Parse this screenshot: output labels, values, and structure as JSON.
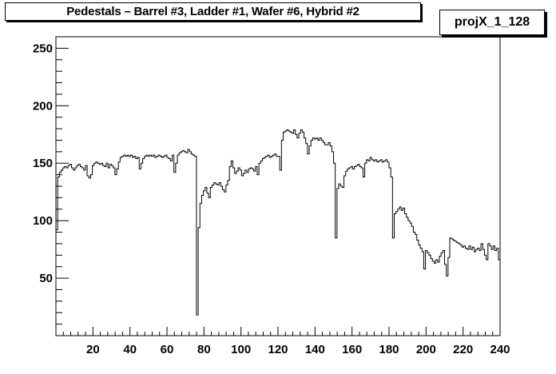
{
  "title": "Pedestals – Barrel #3, Ladder #1, Wafer #6, Hybrid #2",
  "stats_box": {
    "label": "projX_1_128"
  },
  "colors": {
    "background": "#ffffff",
    "line": "#000000",
    "axis": "#000000"
  },
  "chart_data": {
    "type": "line",
    "style": "step-histogram",
    "title": "Pedestals – Barrel #3, Ladder #1, Wafer #6, Hybrid #2",
    "xlabel": "",
    "ylabel": "",
    "xlim": [
      0,
      240
    ],
    "ylim": [
      0,
      260
    ],
    "grid": false,
    "x_ticks": [
      20,
      40,
      60,
      80,
      100,
      120,
      140,
      160,
      180,
      200,
      220,
      240
    ],
    "y_ticks": [
      50,
      100,
      150,
      200,
      250
    ],
    "series": [
      {
        "values": [
          92,
          138,
          142,
          144,
          146,
          147,
          146,
          148,
          149,
          146,
          144,
          146,
          148,
          149,
          147,
          146,
          144,
          148,
          139,
          137,
          140,
          148,
          150,
          151,
          150,
          149,
          150,
          148,
          147,
          150,
          146,
          149,
          148,
          146,
          140,
          145,
          151,
          155,
          156,
          157,
          156,
          157,
          156,
          157,
          155,
          156,
          154,
          155,
          145,
          150,
          154,
          156,
          157,
          156,
          157,
          156,
          157,
          155,
          156,
          157,
          156,
          155,
          156,
          157,
          155,
          154,
          152,
          157,
          142,
          150,
          157,
          159,
          160,
          161,
          160,
          159,
          162,
          160,
          158,
          157,
          156,
          18,
          94,
          115,
          122,
          126,
          129,
          124,
          120,
          129,
          131,
          133,
          132,
          131,
          133,
          130,
          127,
          125,
          131,
          135,
          147,
          152,
          146,
          141,
          143,
          146,
          144,
          139,
          141,
          144,
          142,
          145,
          146,
          145,
          143,
          147,
          140,
          150,
          152,
          154,
          155,
          156,
          157,
          155,
          156,
          157,
          158,
          156,
          156,
          144,
          170,
          177,
          178,
          179,
          178,
          177,
          176,
          179,
          175,
          172,
          176,
          179,
          177,
          172,
          167,
          158,
          165,
          170,
          172,
          171,
          172,
          170,
          172,
          170,
          168,
          166,
          166,
          168,
          165,
          160,
          150,
          85,
          128,
          132,
          130,
          129,
          139,
          143,
          145,
          146,
          147,
          145,
          147,
          148,
          149,
          147,
          146,
          138,
          150,
          153,
          152,
          155,
          153,
          152,
          153,
          151,
          152,
          153,
          151,
          152,
          153,
          151,
          146,
          138,
          85,
          106,
          108,
          110,
          112,
          109,
          111,
          106,
          103,
          100,
          98,
          95,
          90,
          88,
          83,
          79,
          76,
          73,
          58,
          74,
          72,
          70,
          67,
          65,
          63,
          66,
          64,
          69,
          72,
          74,
          62,
          52,
          68,
          85,
          84,
          83,
          82,
          81,
          80,
          79,
          77,
          78,
          76,
          75,
          78,
          75,
          77,
          73,
          75,
          76,
          74,
          80,
          75,
          70,
          66,
          80,
          78,
          75,
          78,
          74,
          76,
          66
        ]
      }
    ]
  }
}
